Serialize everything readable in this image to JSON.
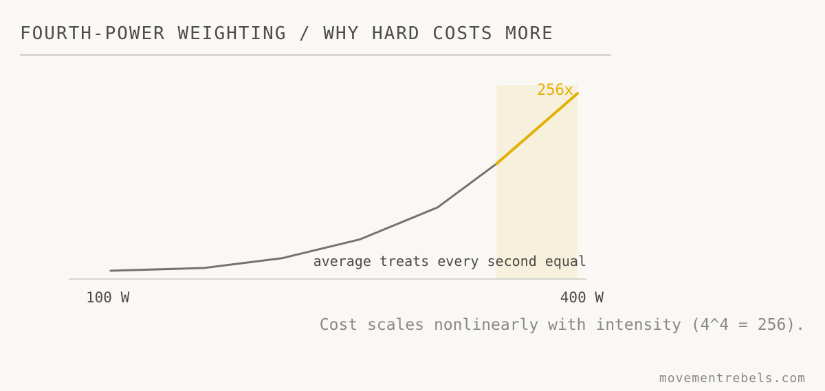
{
  "title": "FOURTH-POWER WEIGHTING / WHY HARD COSTS MORE",
  "caption": "Cost scales nonlinearly with intensity (4^4 = 256).",
  "credit": "movementrebels.com",
  "colors": {
    "background": "#f9f8f4",
    "line": "#74726d",
    "highlight": "#e3b007",
    "highlight_band": "#f6f0dc",
    "axis": "#d7d5ce"
  },
  "chart_data": {
    "type": "line",
    "x_unit": "W",
    "x_ticks": [
      "100 W",
      "400 W"
    ],
    "xlim": [
      100,
      400
    ],
    "ylim": [
      0,
      256
    ],
    "grid": false,
    "series": [
      {
        "values": [
          {
            "x": 100,
            "y": 1
          },
          {
            "x": 160,
            "y": 5
          },
          {
            "x": 210,
            "y": 19
          },
          {
            "x": 260,
            "y": 46
          },
          {
            "x": 310,
            "y": 92
          },
          {
            "x": 348,
            "y": 155
          },
          {
            "x": 400,
            "y": 256
          }
        ]
      }
    ],
    "highlight": {
      "x_range": [
        348,
        400
      ],
      "label": "256x"
    },
    "annotation": "average treats every second equal"
  }
}
